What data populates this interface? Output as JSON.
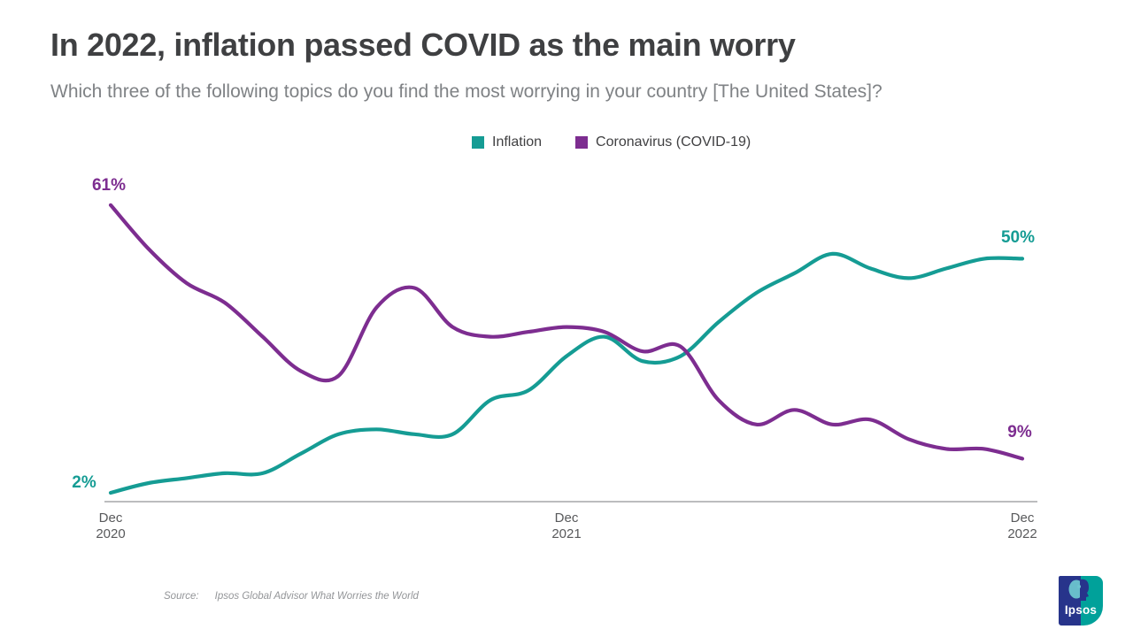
{
  "header": {
    "title": "In 2022, inflation passed COVID as the main worry",
    "subtitle": "Which three of the following topics do you find the most worrying in your country [The United States]?"
  },
  "chart_data": {
    "type": "line",
    "x": [
      "Dec 2020",
      "Jan 2021",
      "Feb 2021",
      "Mar 2021",
      "Apr 2021",
      "May 2021",
      "Jun 2021",
      "Jul 2021",
      "Aug 2021",
      "Sep 2021",
      "Oct 2021",
      "Nov 2021",
      "Dec 2021",
      "Jan 2022",
      "Feb 2022",
      "Mar 2022",
      "Apr 2022",
      "May 2022",
      "Jun 2022",
      "Jul 2022",
      "Aug 2022",
      "Sep 2022",
      "Oct 2022",
      "Nov 2022",
      "Dec 2022"
    ],
    "series": [
      {
        "name": "Inflation",
        "color": "#159c94",
        "values": [
          2,
          4,
          5,
          6,
          6,
          10,
          14,
          15,
          14,
          14,
          21,
          23,
          30,
          34,
          29,
          30,
          37,
          43,
          47,
          51,
          48,
          46,
          48,
          50,
          50
        ],
        "start_label": "2%",
        "end_label": "50%"
      },
      {
        "name": "Coronavirus (COVID-19)",
        "color": "#7d2d90",
        "values": [
          61,
          52,
          45,
          41,
          34,
          27,
          26,
          40,
          44,
          36,
          34,
          35,
          36,
          35,
          31,
          32,
          21,
          16,
          19,
          16,
          17,
          13,
          11,
          11,
          9
        ],
        "start_label": "61%",
        "end_label": "9%"
      }
    ],
    "x_ticks": [
      {
        "line1": "Dec",
        "line2": "2020"
      },
      {
        "line1": "Dec",
        "line2": "2021"
      },
      {
        "line1": "Dec",
        "line2": "2022"
      }
    ],
    "ylim": [
      0,
      65
    ],
    "grid": false,
    "legend_position": "top-center"
  },
  "footer": {
    "source_label": "Source:",
    "source_text": "Ipsos Global Advisor What Worries the World"
  },
  "logo": {
    "text": "Ipsos",
    "navy": "#27348b",
    "teal": "#00a19a"
  }
}
